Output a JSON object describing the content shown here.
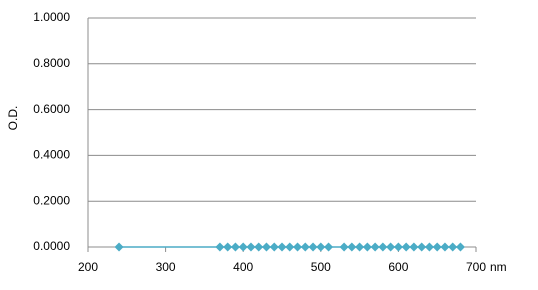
{
  "chart_data": {
    "type": "line",
    "y_label": "O.D.",
    "x_label": "nm",
    "x": [
      240,
      370,
      380,
      390,
      400,
      410,
      420,
      430,
      440,
      450,
      460,
      470,
      480,
      490,
      500,
      510,
      530,
      540,
      550,
      560,
      570,
      580,
      590,
      600,
      610,
      620,
      630,
      640,
      650,
      660,
      670,
      680
    ],
    "series": [
      {
        "color": "#4bacc6",
        "values": [
          0,
          0,
          0,
          0,
          0,
          0,
          0,
          0,
          0,
          0,
          0,
          0,
          0,
          0,
          0,
          0,
          0,
          0,
          0,
          0,
          0,
          0,
          0,
          0,
          0,
          0,
          0,
          0,
          0,
          0,
          0,
          0
        ]
      }
    ],
    "xlim": [
      200,
      700
    ],
    "xticks": [
      200,
      300,
      400,
      500,
      600,
      700
    ],
    "ylim": [
      0,
      1
    ],
    "yticks": [
      {
        "value": 0,
        "label": "0.0000"
      },
      {
        "value": 0.2,
        "label": "0.2000"
      },
      {
        "value": 0.4,
        "label": "0.4000"
      },
      {
        "value": 0.6,
        "label": "0.6000"
      },
      {
        "value": 0.8,
        "label": "0.8000"
      },
      {
        "value": 1,
        "label": "1.0000"
      }
    ],
    "grid": true
  }
}
